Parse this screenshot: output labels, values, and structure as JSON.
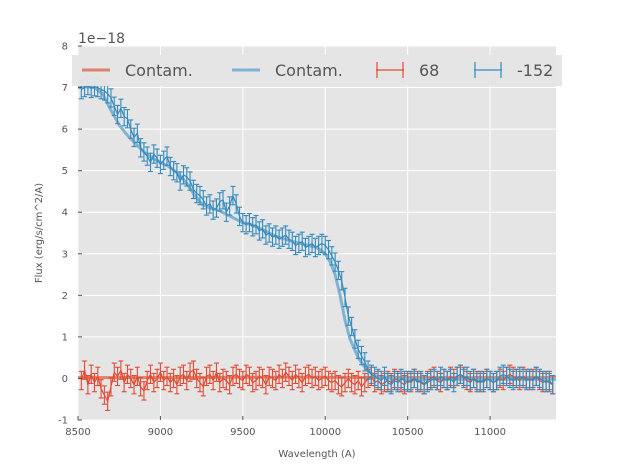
{
  "chart_data": {
    "type": "line",
    "title": "",
    "xlabel": "Wavelength (A)",
    "ylabel": "Flux (erg/s/cm^2/A)",
    "y_multiplier_label": "1e−18",
    "xlim": [
      8500,
      11400
    ],
    "ylim": [
      -1,
      8
    ],
    "x_ticks": [
      8500,
      9000,
      9500,
      10000,
      10500,
      11000
    ],
    "y_ticks": [
      -1,
      0,
      1,
      2,
      3,
      4,
      5,
      6,
      7,
      8
    ],
    "grid": true,
    "legend_position": "top",
    "legend": [
      {
        "label": "Contam.",
        "kind": "line",
        "color": "#e0826b"
      },
      {
        "label": "Contam.",
        "kind": "line",
        "color": "#7fb2d3"
      },
      {
        "label": "68",
        "kind": "errorbar",
        "color": "#e24a33"
      },
      {
        "label": "-152",
        "kind": "errorbar",
        "color": "#348abd"
      }
    ],
    "series": [
      {
        "name": "Contam. (68)",
        "kind": "line",
        "color": "#e0826b",
        "x": [
          8500,
          9000,
          9500,
          10000,
          10500,
          11000,
          11400
        ],
        "y": [
          0.02,
          0.02,
          0.03,
          0.03,
          0.02,
          0.02,
          0.02
        ]
      },
      {
        "name": "Contam. (-152)",
        "kind": "line",
        "color": "#7fb2d3",
        "x": [
          8500,
          8550,
          8600,
          8650,
          8700,
          8750,
          8800,
          8850,
          8900,
          8950,
          9000,
          9050,
          9100,
          9150,
          9200,
          9250,
          9300,
          9350,
          9400,
          9450,
          9500,
          9550,
          9600,
          9650,
          9700,
          9750,
          9800,
          9850,
          9900,
          9950,
          10000,
          10030,
          10060,
          10090,
          10120,
          10150,
          10200,
          10250,
          10300,
          10400,
          10500,
          10600,
          10800,
          11000,
          11200,
          11400
        ],
        "y": [
          7.0,
          7.02,
          7.0,
          6.85,
          6.45,
          6.1,
          5.85,
          5.65,
          5.45,
          5.3,
          5.2,
          5.1,
          4.95,
          4.75,
          4.45,
          4.2,
          4.1,
          4.05,
          3.95,
          3.85,
          3.75,
          3.7,
          3.62,
          3.52,
          3.42,
          3.36,
          3.3,
          3.25,
          3.2,
          3.15,
          3.0,
          2.8,
          2.5,
          2.0,
          1.4,
          0.95,
          0.5,
          0.22,
          0.06,
          0.0,
          -0.02,
          -0.02,
          -0.02,
          -0.02,
          -0.02,
          -0.02
        ]
      },
      {
        "name": "68",
        "kind": "errorbar",
        "color": "#e24a33",
        "yerr": 0.22,
        "x": [
          8520,
          8540,
          8560,
          8580,
          8600,
          8620,
          8640,
          8660,
          8680,
          8700,
          8720,
          8740,
          8760,
          8780,
          8800,
          8820,
          8840,
          8860,
          8880,
          8900,
          8920,
          8940,
          8960,
          8980,
          9000,
          9020,
          9040,
          9060,
          9080,
          9100,
          9120,
          9140,
          9160,
          9180,
          9200,
          9220,
          9240,
          9260,
          9280,
          9300,
          9320,
          9340,
          9360,
          9380,
          9400,
          9420,
          9440,
          9460,
          9480,
          9500,
          9520,
          9540,
          9560,
          9580,
          9600,
          9620,
          9640,
          9660,
          9680,
          9700,
          9720,
          9740,
          9760,
          9780,
          9800,
          9820,
          9840,
          9860,
          9880,
          9900,
          9920,
          9940,
          9960,
          9980,
          10000,
          10020,
          10040,
          10060,
          10080,
          10100,
          10120,
          10140,
          10160,
          10180,
          10200,
          10220,
          10240,
          10260,
          10280,
          10300,
          10320,
          10340,
          10360,
          10380,
          10400,
          10420,
          10440,
          10460,
          10480,
          10500,
          10520,
          10540,
          10560,
          10580,
          10600,
          10620,
          10640,
          10660,
          10680,
          10700,
          10720,
          10740,
          10760,
          10780,
          10800,
          10820,
          10840,
          10860,
          10880,
          10900,
          10920,
          10940,
          10960,
          10980,
          11000,
          11020,
          11040,
          11060,
          11080,
          11100,
          11120,
          11140,
          11160,
          11180,
          11200,
          11220,
          11240,
          11260,
          11280,
          11300,
          11320,
          11340,
          11360,
          11380
        ],
        "y": [
          -0.05,
          0.2,
          -0.15,
          0.1,
          -0.1,
          0.05,
          -0.25,
          -0.4,
          -0.55,
          -0.2,
          0.15,
          0.05,
          0.2,
          -0.1,
          0.1,
          0.0,
          -0.15,
          0.05,
          -0.2,
          -0.3,
          -0.05,
          0.1,
          -0.1,
          0.0,
          0.15,
          -0.05,
          0.05,
          -0.1,
          0.0,
          -0.15,
          0.05,
          0.1,
          -0.05,
          0.15,
          0.2,
          0.0,
          -0.1,
          -0.2,
          0.05,
          0.1,
          -0.05,
          0.15,
          -0.1,
          0.0,
          -0.05,
          -0.15,
          0.05,
          0.1,
          0.0,
          -0.05,
          0.1,
          0.05,
          -0.1,
          -0.05,
          0.05,
          0.0,
          -0.15,
          0.05,
          0.0,
          -0.05,
          0.1,
          0.0,
          0.15,
          0.05,
          -0.05,
          0.1,
          0.0,
          -0.1,
          0.05,
          0.1,
          0.0,
          0.05,
          -0.05,
          0.0,
          0.05,
          -0.05,
          -0.1,
          -0.05,
          -0.15,
          -0.2,
          -0.1,
          0.0,
          -0.1,
          -0.15,
          -0.05,
          -0.2,
          -0.1,
          0.0,
          0.05,
          -0.1,
          -0.05,
          -0.15,
          -0.1,
          -0.05,
          -0.1,
          0.0,
          -0.05,
          -0.1,
          -0.15,
          -0.05,
          -0.1,
          0.0,
          -0.05,
          -0.1,
          -0.15,
          -0.05,
          0.0,
          0.05,
          -0.05,
          -0.1,
          0.0,
          -0.05,
          0.05,
          0.0,
          0.05,
          0.1,
          0.05,
          -0.05,
          -0.1,
          0.0,
          -0.05,
          -0.1,
          -0.05,
          0.0,
          -0.05,
          -0.1,
          -0.05,
          0.0,
          -0.05,
          0.05,
          0.1,
          0.05,
          0.0,
          -0.05,
          0.05,
          0.0,
          -0.05,
          0.0,
          0.05,
          -0.05,
          -0.1,
          -0.05,
          -0.1,
          -0.15
        ]
      },
      {
        "name": "-152",
        "kind": "errorbar",
        "color": "#348abd",
        "yerr": 0.22,
        "x": [
          8520,
          8540,
          8560,
          8580,
          8600,
          8620,
          8640,
          8660,
          8680,
          8700,
          8720,
          8740,
          8760,
          8780,
          8800,
          8820,
          8840,
          8860,
          8880,
          8900,
          8920,
          8940,
          8960,
          8980,
          9000,
          9020,
          9040,
          9060,
          9080,
          9100,
          9120,
          9140,
          9160,
          9180,
          9200,
          9220,
          9240,
          9260,
          9280,
          9300,
          9320,
          9340,
          9360,
          9380,
          9400,
          9420,
          9440,
          9460,
          9480,
          9500,
          9520,
          9540,
          9560,
          9580,
          9600,
          9620,
          9640,
          9660,
          9680,
          9700,
          9720,
          9740,
          9760,
          9780,
          9800,
          9820,
          9840,
          9860,
          9880,
          9900,
          9920,
          9940,
          9960,
          9980,
          10000,
          10020,
          10040,
          10060,
          10080,
          10100,
          10120,
          10140,
          10160,
          10180,
          10200,
          10220,
          10240,
          10260,
          10280,
          10300,
          10320,
          10340,
          10360,
          10380,
          10400,
          10420,
          10440,
          10460,
          10480,
          10500,
          10520,
          10540,
          10560,
          10580,
          10600,
          10620,
          10640,
          10660,
          10680,
          10700,
          10720,
          10740,
          10760,
          10780,
          10800,
          10820,
          10840,
          10860,
          10880,
          10900,
          10920,
          10940,
          10960,
          10980,
          11000,
          11020,
          11040,
          11060,
          11080,
          11100,
          11120,
          11140,
          11160,
          11180,
          11200,
          11220,
          11240,
          11260,
          11280,
          11300,
          11320,
          11340,
          11360,
          11380
        ],
        "y": [
          6.95,
          7.0,
          7.05,
          6.98,
          7.02,
          7.0,
          6.95,
          6.92,
          6.85,
          6.75,
          6.55,
          6.35,
          6.5,
          6.3,
          6.25,
          6.0,
          5.8,
          5.9,
          5.55,
          5.45,
          5.35,
          5.2,
          5.4,
          5.3,
          5.15,
          5.25,
          5.35,
          5.1,
          5.0,
          4.95,
          4.75,
          4.9,
          4.85,
          4.75,
          4.55,
          4.45,
          4.4,
          4.3,
          4.15,
          4.2,
          4.05,
          4.1,
          4.25,
          4.3,
          4.0,
          4.15,
          4.4,
          4.2,
          3.9,
          3.75,
          3.7,
          3.75,
          3.65,
          3.7,
          3.55,
          3.6,
          3.45,
          3.5,
          3.4,
          3.45,
          3.35,
          3.4,
          3.45,
          3.35,
          3.3,
          3.2,
          3.25,
          3.3,
          3.15,
          3.2,
          3.25,
          3.15,
          3.2,
          3.25,
          3.2,
          3.1,
          2.95,
          2.8,
          2.6,
          2.35,
          1.95,
          1.5,
          1.25,
          0.95,
          0.7,
          0.55,
          0.4,
          0.2,
          0.1,
          0.05,
          0.0,
          -0.05,
          0.05,
          -0.1,
          -0.15,
          -0.05,
          -0.1,
          0.0,
          -0.05,
          -0.1,
          -0.05,
          0.0,
          -0.1,
          -0.05,
          -0.15,
          -0.1,
          -0.05,
          0.0,
          -0.05,
          0.05,
          0.0,
          -0.05,
          0.0,
          -0.1,
          0.05,
          0.1,
          0.0,
          0.05,
          -0.05,
          0.0,
          -0.1,
          -0.05,
          -0.1,
          0.0,
          -0.05,
          -0.1,
          -0.05,
          0.05,
          0.1,
          0.05,
          0.0,
          -0.05,
          0.0,
          0.05,
          0.0,
          -0.05,
          0.0,
          -0.05,
          0.05,
          0.0,
          -0.05,
          -0.1,
          -0.05,
          -0.15
        ]
      }
    ]
  }
}
